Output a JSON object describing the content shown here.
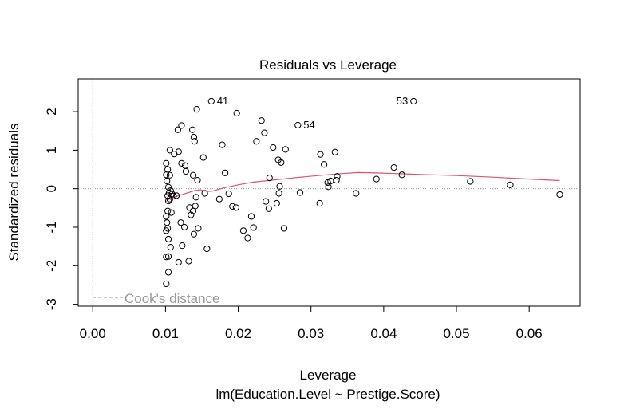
{
  "chart_data": {
    "type": "scatter",
    "title": "Residuals vs Leverage",
    "xlabel": "Leverage",
    "subtitle": "lm(Education.Level ~ Prestige.Score)",
    "ylabel": "Standardized residuals",
    "xlim": [
      -0.002,
      0.067
    ],
    "ylim": [
      -3.05,
      2.85
    ],
    "xticks": [
      0.0,
      0.01,
      0.02,
      0.03,
      0.04,
      0.05,
      0.06
    ],
    "xtick_labels": [
      "0.00",
      "0.01",
      "0.02",
      "0.03",
      "0.04",
      "0.05",
      "0.06"
    ],
    "yticks": [
      -3,
      -2,
      -1,
      0,
      1,
      2
    ],
    "ytick_labels": [
      "-3",
      "-2",
      "-1",
      "0",
      "1",
      "2"
    ],
    "grid": false,
    "legend": {
      "position": "bottom-left",
      "entries": [
        "Cook's distance"
      ]
    },
    "colors": {
      "points": "#000000",
      "smooth": "#df536b",
      "reference": "#999999",
      "legend": "#999999"
    },
    "points": [
      {
        "x": 0.0101,
        "y": -2.47
      },
      {
        "x": 0.0104,
        "y": -2.17
      },
      {
        "x": 0.0101,
        "y": -1.77
      },
      {
        "x": 0.0104,
        "y": -1.76
      },
      {
        "x": 0.0107,
        "y": -1.52
      },
      {
        "x": 0.0104,
        "y": -1.31
      },
      {
        "x": 0.0101,
        "y": -1.09
      },
      {
        "x": 0.0103,
        "y": -1.03
      },
      {
        "x": 0.0102,
        "y": -0.88
      },
      {
        "x": 0.0101,
        "y": -0.72
      },
      {
        "x": 0.0103,
        "y": -0.58
      },
      {
        "x": 0.0108,
        "y": -0.62
      },
      {
        "x": 0.0104,
        "y": -0.32
      },
      {
        "x": 0.0106,
        "y": -0.27
      },
      {
        "x": 0.0103,
        "y": -0.18
      },
      {
        "x": 0.0105,
        "y": -0.11
      },
      {
        "x": 0.0107,
        "y": -0.05
      },
      {
        "x": 0.0109,
        "y": -0.14
      },
      {
        "x": 0.0111,
        "y": -0.19
      },
      {
        "x": 0.0104,
        "y": 0.04
      },
      {
        "x": 0.0102,
        "y": 0.2
      },
      {
        "x": 0.0101,
        "y": 0.36
      },
      {
        "x": 0.0106,
        "y": 0.35
      },
      {
        "x": 0.0103,
        "y": 0.5
      },
      {
        "x": 0.0101,
        "y": 0.66
      },
      {
        "x": 0.0106,
        "y": 1.0
      },
      {
        "x": 0.0112,
        "y": 0.9
      },
      {
        "x": 0.0118,
        "y": 0.96
      },
      {
        "x": 0.0117,
        "y": 1.53
      },
      {
        "x": 0.0122,
        "y": 1.64
      },
      {
        "x": 0.0122,
        "y": 0.66
      },
      {
        "x": 0.0127,
        "y": 0.6
      },
      {
        "x": 0.0128,
        "y": 0.45
      },
      {
        "x": 0.0115,
        "y": -0.18
      },
      {
        "x": 0.0118,
        "y": -1.91
      },
      {
        "x": 0.0123,
        "y": -1.48
      },
      {
        "x": 0.0126,
        "y": -1.0
      },
      {
        "x": 0.0121,
        "y": -0.88
      },
      {
        "x": 0.0133,
        "y": -0.49
      },
      {
        "x": 0.0135,
        "y": -0.68
      },
      {
        "x": 0.0138,
        "y": -0.58
      },
      {
        "x": 0.0132,
        "y": -1.88
      },
      {
        "x": 0.0139,
        "y": -1.18
      },
      {
        "x": 0.0145,
        "y": -1.03
      },
      {
        "x": 0.0141,
        "y": -0.45
      },
      {
        "x": 0.0142,
        "y": -0.22
      },
      {
        "x": 0.0138,
        "y": 0.35
      },
      {
        "x": 0.0144,
        "y": 0.22
      },
      {
        "x": 0.0137,
        "y": 1.53
      },
      {
        "x": 0.0139,
        "y": 1.34
      },
      {
        "x": 0.014,
        "y": 1.23
      },
      {
        "x": 0.0143,
        "y": 2.06
      },
      {
        "x": 0.0154,
        "y": -0.12
      },
      {
        "x": 0.0157,
        "y": -1.56
      },
      {
        "x": 0.0152,
        "y": 0.81
      },
      {
        "x": 0.0163,
        "y": 2.27
      },
      {
        "x": 0.0174,
        "y": -0.27
      },
      {
        "x": 0.0178,
        "y": 1.14
      },
      {
        "x": 0.0182,
        "y": 0.41
      },
      {
        "x": 0.0187,
        "y": -0.13
      },
      {
        "x": 0.0192,
        "y": -0.46
      },
      {
        "x": 0.0197,
        "y": -0.49
      },
      {
        "x": 0.0198,
        "y": 1.96
      },
      {
        "x": 0.0207,
        "y": -1.09
      },
      {
        "x": 0.0213,
        "y": -1.28
      },
      {
        "x": 0.0218,
        "y": -0.72
      },
      {
        "x": 0.0221,
        "y": -1.01
      },
      {
        "x": 0.0225,
        "y": 1.23
      },
      {
        "x": 0.0232,
        "y": 1.77
      },
      {
        "x": 0.0236,
        "y": 1.45
      },
      {
        "x": 0.0238,
        "y": -0.33
      },
      {
        "x": 0.0242,
        "y": -0.52
      },
      {
        "x": 0.0243,
        "y": 0.28
      },
      {
        "x": 0.0248,
        "y": 1.07
      },
      {
        "x": 0.0253,
        "y": -0.38
      },
      {
        "x": 0.0256,
        "y": -0.12
      },
      {
        "x": 0.0255,
        "y": 0.75
      },
      {
        "x": 0.0259,
        "y": 0.68
      },
      {
        "x": 0.0257,
        "y": 0.06
      },
      {
        "x": 0.0263,
        "y": -1.03
      },
      {
        "x": 0.0265,
        "y": 1.02
      },
      {
        "x": 0.0282,
        "y": 1.65
      },
      {
        "x": 0.0285,
        "y": -0.1
      },
      {
        "x": 0.0312,
        "y": -0.38
      },
      {
        "x": 0.0313,
        "y": 0.89
      },
      {
        "x": 0.0318,
        "y": 0.63
      },
      {
        "x": 0.0323,
        "y": 0.16
      },
      {
        "x": 0.0324,
        "y": 0.05
      },
      {
        "x": 0.0327,
        "y": 0.2
      },
      {
        "x": 0.0333,
        "y": 0.95
      },
      {
        "x": 0.0335,
        "y": 0.22
      },
      {
        "x": 0.0336,
        "y": 0.32
      },
      {
        "x": 0.0362,
        "y": -0.12
      },
      {
        "x": 0.039,
        "y": 0.25
      },
      {
        "x": 0.0414,
        "y": 0.55
      },
      {
        "x": 0.0425,
        "y": 0.36
      },
      {
        "x": 0.0441,
        "y": 2.27
      },
      {
        "x": 0.0519,
        "y": 0.19
      },
      {
        "x": 0.0574,
        "y": 0.1
      },
      {
        "x": 0.0642,
        "y": -0.15
      }
    ],
    "point_labels": [
      {
        "text": "41",
        "x": 0.0163,
        "y": 2.27,
        "side": "right"
      },
      {
        "text": "54",
        "x": 0.0282,
        "y": 1.65,
        "side": "right"
      },
      {
        "text": "53",
        "x": 0.0441,
        "y": 2.27,
        "side": "left"
      }
    ],
    "smooth": {
      "x": [
        0.0101,
        0.0105,
        0.011,
        0.0115,
        0.012,
        0.0125,
        0.013,
        0.0135,
        0.014,
        0.0148,
        0.0157,
        0.0165,
        0.018,
        0.02,
        0.022,
        0.025,
        0.028,
        0.031,
        0.034,
        0.0365,
        0.039,
        0.042,
        0.045,
        0.05,
        0.055,
        0.06,
        0.0642
      ],
      "y": [
        -0.33,
        -0.27,
        -0.23,
        -0.2,
        -0.17,
        -0.14,
        -0.11,
        -0.08,
        -0.05,
        -0.03,
        -0.07,
        -0.06,
        0.02,
        0.1,
        0.17,
        0.23,
        0.29,
        0.34,
        0.39,
        0.42,
        0.41,
        0.39,
        0.37,
        0.34,
        0.3,
        0.25,
        0.21
      ]
    }
  }
}
